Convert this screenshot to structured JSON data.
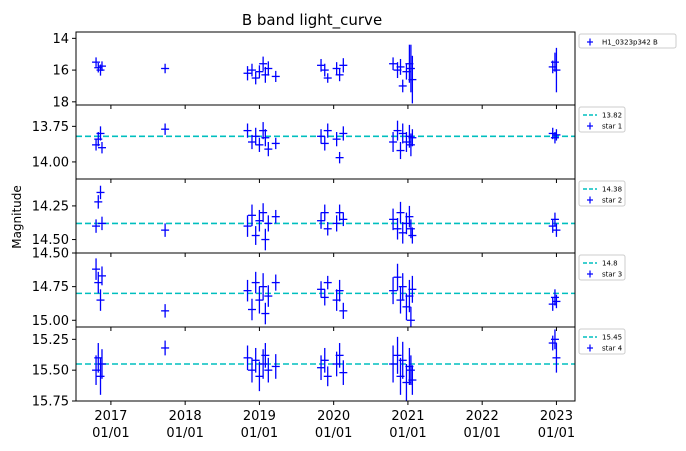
{
  "chart_data": {
    "type": "scatter",
    "title": "B band light_curve",
    "ylabel": "Magnitude",
    "xlabel": "",
    "y_inverted": true,
    "x_ticks": [
      {
        "line1": "2017",
        "line2": "01/01",
        "x": 2017.0
      },
      {
        "line1": "2018",
        "line2": "01/01",
        "x": 2018.0
      },
      {
        "line1": "2019",
        "line2": "01/01",
        "x": 2019.0
      },
      {
        "line1": "2020",
        "line2": "01/01",
        "x": 2020.0
      },
      {
        "line1": "2021",
        "line2": "01/01",
        "x": 2021.0
      },
      {
        "line1": "2022",
        "line2": "01/01",
        "x": 2022.0
      },
      {
        "line1": "2023",
        "line2": "01/01",
        "x": 2023.0
      }
    ],
    "xlim": [
      2016.53,
      2023.25
    ],
    "colors": {
      "series": "#0000ff",
      "reference": "#00bfbf"
    },
    "panels": [
      {
        "name": "H1_0323p342 B",
        "ylim": [
          18.2,
          13.6
        ],
        "yticks": [
          "14",
          "16",
          "18"
        ],
        "reference": null,
        "points": [
          {
            "x": 2016.8,
            "y": 15.5,
            "err": 0.3
          },
          {
            "x": 2016.83,
            "y": 15.85,
            "err": 0.3
          },
          {
            "x": 2016.86,
            "y": 16.0,
            "err": 0.35
          },
          {
            "x": 2016.88,
            "y": 15.75,
            "err": 0.3
          },
          {
            "x": 2017.73,
            "y": 15.9,
            "err": 0.3
          },
          {
            "x": 2018.84,
            "y": 16.2,
            "err": 0.45
          },
          {
            "x": 2018.9,
            "y": 16.0,
            "err": 0.4
          },
          {
            "x": 2018.95,
            "y": 16.5,
            "err": 0.4
          },
          {
            "x": 2019.0,
            "y": 16.1,
            "err": 0.4
          },
          {
            "x": 2019.05,
            "y": 15.6,
            "err": 0.45
          },
          {
            "x": 2019.08,
            "y": 16.3,
            "err": 0.5
          },
          {
            "x": 2019.12,
            "y": 15.9,
            "err": 0.45
          },
          {
            "x": 2019.22,
            "y": 16.4,
            "err": 0.35
          },
          {
            "x": 2019.83,
            "y": 15.7,
            "err": 0.4
          },
          {
            "x": 2019.88,
            "y": 16.0,
            "err": 0.4
          },
          {
            "x": 2019.92,
            "y": 16.5,
            "err": 0.3
          },
          {
            "x": 2020.04,
            "y": 15.9,
            "err": 0.4
          },
          {
            "x": 2020.08,
            "y": 16.3,
            "err": 0.4
          },
          {
            "x": 2020.13,
            "y": 15.7,
            "err": 0.45
          },
          {
            "x": 2020.8,
            "y": 15.6,
            "err": 0.4
          },
          {
            "x": 2020.86,
            "y": 16.0,
            "err": 0.5
          },
          {
            "x": 2020.9,
            "y": 15.8,
            "err": 0.5
          },
          {
            "x": 2020.93,
            "y": 17.0,
            "err": 0.4
          },
          {
            "x": 2020.98,
            "y": 16.1,
            "err": 0.5
          },
          {
            "x": 2021.02,
            "y": 15.6,
            "err": 1.2
          },
          {
            "x": 2021.04,
            "y": 15.9,
            "err": 1.5
          },
          {
            "x": 2021.06,
            "y": 16.6,
            "err": 1.5
          },
          {
            "x": 2022.95,
            "y": 15.8,
            "err": 0.4
          },
          {
            "x": 2022.98,
            "y": 15.5,
            "err": 0.6
          },
          {
            "x": 2023.0,
            "y": 16.0,
            "err": 1.4
          }
        ]
      },
      {
        "name": "star 1",
        "ylim": [
          14.12,
          13.6
        ],
        "yticks": [
          "13.75",
          "14.00"
        ],
        "reference": {
          "value": 13.82,
          "label": "13.82"
        },
        "points": [
          {
            "x": 2016.8,
            "y": 13.88,
            "err": 0.04
          },
          {
            "x": 2016.83,
            "y": 13.84,
            "err": 0.05
          },
          {
            "x": 2016.86,
            "y": 13.8,
            "err": 0.05
          },
          {
            "x": 2016.88,
            "y": 13.9,
            "err": 0.04
          },
          {
            "x": 2017.73,
            "y": 13.77,
            "err": 0.04
          },
          {
            "x": 2018.84,
            "y": 13.78,
            "err": 0.05
          },
          {
            "x": 2018.9,
            "y": 13.86,
            "err": 0.05
          },
          {
            "x": 2018.95,
            "y": 13.82,
            "err": 0.06
          },
          {
            "x": 2019.0,
            "y": 13.88,
            "err": 0.05
          },
          {
            "x": 2019.05,
            "y": 13.78,
            "err": 0.06
          },
          {
            "x": 2019.08,
            "y": 13.83,
            "err": 0.06
          },
          {
            "x": 2019.12,
            "y": 13.91,
            "err": 0.05
          },
          {
            "x": 2019.22,
            "y": 13.87,
            "err": 0.04
          },
          {
            "x": 2019.83,
            "y": 13.82,
            "err": 0.05
          },
          {
            "x": 2019.88,
            "y": 13.87,
            "err": 0.05
          },
          {
            "x": 2019.92,
            "y": 13.78,
            "err": 0.05
          },
          {
            "x": 2020.04,
            "y": 13.84,
            "err": 0.05
          },
          {
            "x": 2020.08,
            "y": 13.97,
            "err": 0.04
          },
          {
            "x": 2020.13,
            "y": 13.8,
            "err": 0.05
          },
          {
            "x": 2020.8,
            "y": 13.86,
            "err": 0.07
          },
          {
            "x": 2020.86,
            "y": 13.78,
            "err": 0.07
          },
          {
            "x": 2020.9,
            "y": 13.92,
            "err": 0.06
          },
          {
            "x": 2020.93,
            "y": 13.8,
            "err": 0.07
          },
          {
            "x": 2020.98,
            "y": 13.86,
            "err": 0.07
          },
          {
            "x": 2021.02,
            "y": 13.82,
            "err": 0.08
          },
          {
            "x": 2021.04,
            "y": 13.88,
            "err": 0.08
          },
          {
            "x": 2021.06,
            "y": 13.83,
            "err": 0.06
          },
          {
            "x": 2022.95,
            "y": 13.8,
            "err": 0.04
          },
          {
            "x": 2022.98,
            "y": 13.83,
            "err": 0.04
          },
          {
            "x": 2023.0,
            "y": 13.81,
            "err": 0.04
          }
        ]
      },
      {
        "name": "star 2",
        "ylim": [
          14.6,
          14.05
        ],
        "yticks": [
          "14.25",
          "14.50"
        ],
        "reference": {
          "value": 14.38,
          "label": "14.38"
        },
        "points": [
          {
            "x": 2016.8,
            "y": 14.4,
            "err": 0.05
          },
          {
            "x": 2016.83,
            "y": 14.22,
            "err": 0.05
          },
          {
            "x": 2016.86,
            "y": 14.15,
            "err": 0.05
          },
          {
            "x": 2016.88,
            "y": 14.38,
            "err": 0.05
          },
          {
            "x": 2017.73,
            "y": 14.43,
            "err": 0.05
          },
          {
            "x": 2018.84,
            "y": 14.4,
            "err": 0.08
          },
          {
            "x": 2018.9,
            "y": 14.32,
            "err": 0.08
          },
          {
            "x": 2018.95,
            "y": 14.47,
            "err": 0.07
          },
          {
            "x": 2019.0,
            "y": 14.36,
            "err": 0.08
          },
          {
            "x": 2019.05,
            "y": 14.3,
            "err": 0.07
          },
          {
            "x": 2019.08,
            "y": 14.5,
            "err": 0.08
          },
          {
            "x": 2019.12,
            "y": 14.38,
            "err": 0.06
          },
          {
            "x": 2019.22,
            "y": 14.33,
            "err": 0.05
          },
          {
            "x": 2019.83,
            "y": 14.36,
            "err": 0.06
          },
          {
            "x": 2019.88,
            "y": 14.3,
            "err": 0.06
          },
          {
            "x": 2019.92,
            "y": 14.42,
            "err": 0.05
          },
          {
            "x": 2020.04,
            "y": 14.38,
            "err": 0.06
          },
          {
            "x": 2020.08,
            "y": 14.3,
            "err": 0.06
          },
          {
            "x": 2020.13,
            "y": 14.35,
            "err": 0.05
          },
          {
            "x": 2020.8,
            "y": 14.35,
            "err": 0.08
          },
          {
            "x": 2020.86,
            "y": 14.42,
            "err": 0.08
          },
          {
            "x": 2020.9,
            "y": 14.3,
            "err": 0.08
          },
          {
            "x": 2020.93,
            "y": 14.45,
            "err": 0.08
          },
          {
            "x": 2020.98,
            "y": 14.38,
            "err": 0.08
          },
          {
            "x": 2021.02,
            "y": 14.33,
            "err": 0.08
          },
          {
            "x": 2021.04,
            "y": 14.42,
            "err": 0.07
          },
          {
            "x": 2021.06,
            "y": 14.47,
            "err": 0.06
          },
          {
            "x": 2022.95,
            "y": 14.4,
            "err": 0.05
          },
          {
            "x": 2022.98,
            "y": 14.35,
            "err": 0.05
          },
          {
            "x": 2023.0,
            "y": 14.43,
            "err": 0.05
          }
        ]
      },
      {
        "name": "star 3",
        "ylim": [
          15.05,
          14.5
        ],
        "yticks": [
          "14.50",
          "14.75",
          "15.00"
        ],
        "reference": {
          "value": 14.8,
          "label": "14.8"
        },
        "points": [
          {
            "x": 2016.8,
            "y": 14.62,
            "err": 0.08
          },
          {
            "x": 2016.83,
            "y": 14.72,
            "err": 0.08
          },
          {
            "x": 2016.86,
            "y": 14.85,
            "err": 0.08
          },
          {
            "x": 2016.88,
            "y": 14.67,
            "err": 0.07
          },
          {
            "x": 2017.73,
            "y": 14.93,
            "err": 0.05
          },
          {
            "x": 2018.84,
            "y": 14.78,
            "err": 0.08
          },
          {
            "x": 2018.9,
            "y": 14.92,
            "err": 0.08
          },
          {
            "x": 2018.95,
            "y": 14.72,
            "err": 0.08
          },
          {
            "x": 2019.0,
            "y": 14.85,
            "err": 0.1
          },
          {
            "x": 2019.05,
            "y": 14.75,
            "err": 0.1
          },
          {
            "x": 2019.08,
            "y": 14.95,
            "err": 0.08
          },
          {
            "x": 2019.12,
            "y": 14.82,
            "err": 0.08
          },
          {
            "x": 2019.22,
            "y": 14.72,
            "err": 0.06
          },
          {
            "x": 2019.83,
            "y": 14.77,
            "err": 0.06
          },
          {
            "x": 2019.88,
            "y": 14.83,
            "err": 0.06
          },
          {
            "x": 2019.92,
            "y": 14.72,
            "err": 0.05
          },
          {
            "x": 2020.04,
            "y": 14.85,
            "err": 0.08
          },
          {
            "x": 2020.08,
            "y": 14.78,
            "err": 0.08
          },
          {
            "x": 2020.13,
            "y": 14.93,
            "err": 0.06
          },
          {
            "x": 2020.8,
            "y": 14.78,
            "err": 0.1
          },
          {
            "x": 2020.86,
            "y": 14.68,
            "err": 0.1
          },
          {
            "x": 2020.9,
            "y": 14.85,
            "err": 0.1
          },
          {
            "x": 2020.93,
            "y": 14.75,
            "err": 0.1
          },
          {
            "x": 2020.98,
            "y": 14.9,
            "err": 0.1
          },
          {
            "x": 2021.02,
            "y": 14.82,
            "err": 0.12
          },
          {
            "x": 2021.04,
            "y": 15.0,
            "err": 0.1
          },
          {
            "x": 2021.06,
            "y": 14.77,
            "err": 0.1
          },
          {
            "x": 2022.95,
            "y": 14.88,
            "err": 0.05
          },
          {
            "x": 2022.98,
            "y": 14.83,
            "err": 0.06
          },
          {
            "x": 2023.0,
            "y": 14.86,
            "err": 0.05
          }
        ]
      },
      {
        "name": "star 4",
        "ylim": [
          15.75,
          15.15
        ],
        "yticks": [
          "15.25",
          "15.50",
          "15.75"
        ],
        "reference": {
          "value": 15.45,
          "label": "15.45"
        },
        "points": [
          {
            "x": 2016.8,
            "y": 15.5,
            "err": 0.12
          },
          {
            "x": 2016.83,
            "y": 15.4,
            "err": 0.12
          },
          {
            "x": 2016.86,
            "y": 15.55,
            "err": 0.15
          },
          {
            "x": 2016.88,
            "y": 15.45,
            "err": 0.12
          },
          {
            "x": 2017.73,
            "y": 15.32,
            "err": 0.06
          },
          {
            "x": 2018.84,
            "y": 15.4,
            "err": 0.1
          },
          {
            "x": 2018.9,
            "y": 15.5,
            "err": 0.1
          },
          {
            "x": 2018.95,
            "y": 15.42,
            "err": 0.1
          },
          {
            "x": 2019.0,
            "y": 15.55,
            "err": 0.12
          },
          {
            "x": 2019.05,
            "y": 15.45,
            "err": 0.12
          },
          {
            "x": 2019.08,
            "y": 15.38,
            "err": 0.1
          },
          {
            "x": 2019.12,
            "y": 15.5,
            "err": 0.1
          },
          {
            "x": 2019.22,
            "y": 15.47,
            "err": 0.1
          },
          {
            "x": 2019.83,
            "y": 15.48,
            "err": 0.1
          },
          {
            "x": 2019.88,
            "y": 15.42,
            "err": 0.1
          },
          {
            "x": 2019.92,
            "y": 15.55,
            "err": 0.08
          },
          {
            "x": 2020.04,
            "y": 15.45,
            "err": 0.1
          },
          {
            "x": 2020.08,
            "y": 15.38,
            "err": 0.1
          },
          {
            "x": 2020.13,
            "y": 15.52,
            "err": 0.1
          },
          {
            "x": 2020.8,
            "y": 15.45,
            "err": 0.15
          },
          {
            "x": 2020.86,
            "y": 15.38,
            "err": 0.15
          },
          {
            "x": 2020.9,
            "y": 15.55,
            "err": 0.15
          },
          {
            "x": 2020.93,
            "y": 15.42,
            "err": 0.15
          },
          {
            "x": 2020.98,
            "y": 15.6,
            "err": 0.15
          },
          {
            "x": 2021.02,
            "y": 15.47,
            "err": 0.15
          },
          {
            "x": 2021.04,
            "y": 15.5,
            "err": 0.12
          },
          {
            "x": 2021.06,
            "y": 15.58,
            "err": 0.12
          },
          {
            "x": 2022.95,
            "y": 15.28,
            "err": 0.06
          },
          {
            "x": 2022.98,
            "y": 15.25,
            "err": 0.08
          },
          {
            "x": 2023.0,
            "y": 15.4,
            "err": 0.12
          }
        ]
      }
    ]
  }
}
